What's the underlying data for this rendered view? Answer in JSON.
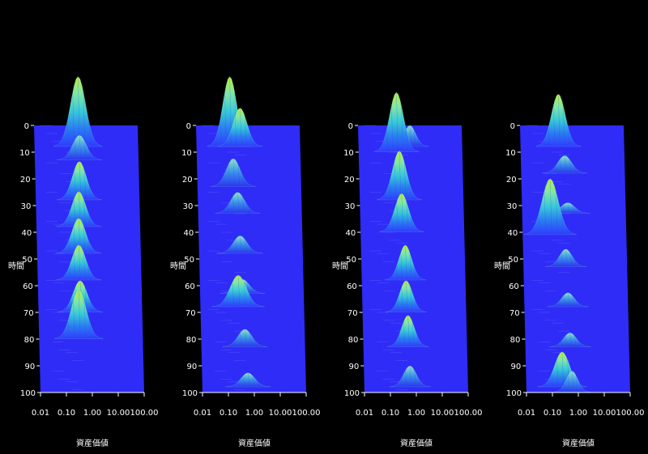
{
  "chart_data": [
    {
      "type": "surface3d",
      "x_label": "資産価値",
      "y_label": "時間",
      "x_scale": "log",
      "x_ticks": [
        "0.01",
        "0.10",
        "1.00",
        "10.00",
        "100.00"
      ],
      "y_ticks": [
        "0",
        "10",
        "20",
        "30",
        "40",
        "50",
        "60",
        "70",
        "80",
        "90",
        "100"
      ],
      "ridges": [
        {
          "t": 0,
          "center": 0.5,
          "height": 1.0,
          "width": 0.13
        },
        {
          "t": 5,
          "center": 0.55,
          "height": 0.35,
          "width": 0.12
        },
        {
          "t": 20,
          "center": 0.5,
          "height": 0.55,
          "width": 0.12
        },
        {
          "t": 30,
          "center": 0.45,
          "height": 0.5,
          "width": 0.12
        },
        {
          "t": 40,
          "center": 0.42,
          "height": 0.5,
          "width": 0.12
        },
        {
          "t": 50,
          "center": 0.4,
          "height": 0.5,
          "width": 0.12
        },
        {
          "t": 62,
          "center": 0.42,
          "height": 0.45,
          "width": 0.12
        },
        {
          "t": 72,
          "center": 0.35,
          "height": 0.7,
          "width": 0.13
        }
      ]
    },
    {
      "type": "surface3d",
      "x_label": "資産価値",
      "y_label": "時間",
      "x_scale": "log",
      "x_ticks": [
        "0.01",
        "0.10",
        "1.00",
        "10.00",
        "100.00"
      ],
      "y_ticks": [
        "0",
        "10",
        "20",
        "30",
        "40",
        "50",
        "60",
        "70",
        "80",
        "90",
        "100"
      ],
      "ridges": [
        {
          "t": 0,
          "center": 0.2,
          "height": 1.0,
          "width": 0.12
        },
        {
          "t": 0,
          "center": 0.5,
          "height": 0.55,
          "width": 0.12
        },
        {
          "t": 15,
          "center": 0.25,
          "height": 0.4,
          "width": 0.12
        },
        {
          "t": 25,
          "center": 0.35,
          "height": 0.3,
          "width": 0.12
        },
        {
          "t": 40,
          "center": 0.4,
          "height": 0.25,
          "width": 0.12
        },
        {
          "t": 55,
          "center": 0.45,
          "height": 0.2,
          "width": 0.12
        },
        {
          "t": 60,
          "center": 0.3,
          "height": 0.45,
          "width": 0.14
        },
        {
          "t": 75,
          "center": 0.5,
          "height": 0.25,
          "width": 0.12
        },
        {
          "t": 90,
          "center": 0.6,
          "height": 0.2,
          "width": 0.12
        }
      ]
    },
    {
      "type": "surface3d",
      "x_label": "資産価値",
      "y_label": "時間",
      "x_scale": "log",
      "x_ticks": [
        "0.01",
        "0.10",
        "1.00",
        "10.00",
        "100.00"
      ],
      "y_ticks": [
        "0",
        "10",
        "20",
        "30",
        "40",
        "50",
        "60",
        "70",
        "80",
        "90",
        "100"
      ],
      "ridges": [
        {
          "t": 0,
          "center": 1.0,
          "height": 0.3,
          "width": 0.1
        },
        {
          "t": 2,
          "center": 0.3,
          "height": 0.85,
          "width": 0.12
        },
        {
          "t": 20,
          "center": 0.35,
          "height": 0.7,
          "width": 0.12
        },
        {
          "t": 32,
          "center": 0.4,
          "height": 0.55,
          "width": 0.12
        },
        {
          "t": 50,
          "center": 0.5,
          "height": 0.5,
          "width": 0.11
        },
        {
          "t": 62,
          "center": 0.5,
          "height": 0.45,
          "width": 0.11
        },
        {
          "t": 75,
          "center": 0.55,
          "height": 0.45,
          "width": 0.11
        },
        {
          "t": 90,
          "center": 0.6,
          "height": 0.3,
          "width": 0.11
        }
      ]
    },
    {
      "type": "surface3d",
      "x_label": "資産価値",
      "y_label": "時間",
      "x_scale": "log",
      "x_ticks": [
        "0.01",
        "0.10",
        "1.00",
        "10.00",
        "100.00"
      ],
      "y_ticks": [
        "0",
        "10",
        "20",
        "30",
        "40",
        "50",
        "60",
        "70",
        "80",
        "90",
        "100"
      ],
      "ridges": [
        {
          "t": 0,
          "center": 0.3,
          "height": 0.75,
          "width": 0.12
        },
        {
          "t": 10,
          "center": 0.5,
          "height": 0.25,
          "width": 0.12
        },
        {
          "t": 25,
          "center": 0.6,
          "height": 0.15,
          "width": 0.12
        },
        {
          "t": 33,
          "center": 0.12,
          "height": 0.8,
          "width": 0.14
        },
        {
          "t": 45,
          "center": 0.45,
          "height": 0.25,
          "width": 0.11
        },
        {
          "t": 60,
          "center": 0.5,
          "height": 0.2,
          "width": 0.11
        },
        {
          "t": 75,
          "center": 0.55,
          "height": 0.2,
          "width": 0.11
        },
        {
          "t": 90,
          "center": 0.25,
          "height": 0.5,
          "width": 0.13
        },
        {
          "t": 92,
          "center": 0.6,
          "height": 0.3,
          "width": 0.1
        }
      ]
    }
  ]
}
